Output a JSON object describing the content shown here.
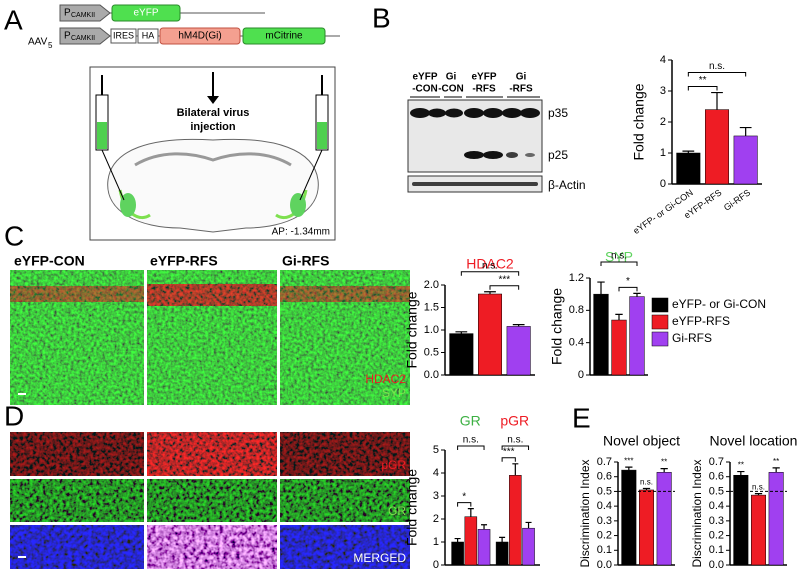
{
  "panel_labels": [
    "A",
    "B",
    "C",
    "D",
    "E"
  ],
  "construct": {
    "vector": "AAV",
    "vector_sub": "5",
    "promoter": "P",
    "promoter_sub": "CAMKII",
    "reporter": "eYFP",
    "ires": "IRES",
    "tag": "HA",
    "receptor": "hM4D(Gi)",
    "fluor": "mCitrine",
    "injection": [
      "Bilateral virus",
      "injection"
    ],
    "coordinate": "AP: -1.34mm"
  },
  "blot": {
    "lanes": [
      [
        "eYFP",
        "-CON"
      ],
      [
        "Gi",
        "-CON"
      ],
      [
        "eYFP",
        "-RFS"
      ],
      [
        "Gi",
        "-RFS"
      ]
    ],
    "bands": [
      "p35",
      "p25",
      "β-Actin"
    ]
  },
  "micrographs": {
    "columns": [
      "eYFP-CON",
      "eYFP-RFS",
      "Gi-RFS"
    ],
    "stains": [
      "HDAC2",
      "SYP"
    ],
    "rows": [
      "pGR",
      "GR",
      "MERGED"
    ]
  },
  "chart_data": [
    {
      "type": "bar",
      "ylabel": "Fold change",
      "categories": [
        "eYFP- or Gi-CON",
        "eYFP-RFS",
        "Gi-RFS"
      ],
      "values": [
        1.0,
        2.4,
        1.55
      ],
      "errors": [
        0.06,
        0.55,
        0.27
      ],
      "colors": [
        "#000000",
        "#ee1c24",
        "#a040f0"
      ],
      "ylim": [
        0,
        4
      ],
      "yticks": [
        0,
        1,
        2,
        3,
        4
      ],
      "comparisons": [
        {
          "label": "**",
          "from": 0,
          "to": 1
        },
        {
          "label": "n.s.",
          "from": 0,
          "to": 2
        }
      ]
    },
    {
      "type": "bar",
      "title": "HDAC2",
      "title_color": "#ee1c24",
      "ylabel": "Fold change",
      "values": [
        0.92,
        1.8,
        1.08
      ],
      "errors": [
        0.04,
        0.05,
        0.04
      ],
      "colors": [
        "#000000",
        "#ee1c24",
        "#a040f0"
      ],
      "ylim": [
        0,
        2
      ],
      "yticks": [
        {
          "value": 0,
          "label": "0.0"
        },
        0.5,
        {
          "value": 1,
          "label": "1.0"
        },
        1.5,
        {
          "value": 2,
          "label": "2.0"
        }
      ],
      "comparisons": [
        {
          "label": "***",
          "from": 1,
          "to": 2
        },
        {
          "label": "n.s.",
          "from": 0,
          "to": 2
        }
      ]
    },
    {
      "type": "bar",
      "title": "SYP",
      "title_color": "#5fd35f",
      "ylabel": "Fold change",
      "values": [
        1.0,
        0.68,
        0.97
      ],
      "errors": [
        0.15,
        0.07,
        0.04
      ],
      "colors": [
        "#000000",
        "#ee1c24",
        "#a040f0"
      ],
      "ylim": [
        0,
        1.2
      ],
      "yticks": [
        0,
        0.4,
        0.8,
        1.2
      ],
      "comparisons": [
        {
          "label": "*",
          "from": 1,
          "to": 2
        },
        {
          "label": "n.s.",
          "from": 0,
          "to": 2
        }
      ]
    },
    {
      "type": "grouped_bar",
      "ylabel": "Fold change",
      "categories": [
        "GR",
        "pGR"
      ],
      "category_colors": [
        "#3cb043",
        "#ee1c24"
      ],
      "series": [
        {
          "name": "eYFP- or Gi-CON",
          "color": "#000000",
          "values": [
            1.0,
            1.0
          ],
          "errors": [
            0.15,
            0.2
          ]
        },
        {
          "name": "eYFP-RFS",
          "color": "#ee1c24",
          "values": [
            2.1,
            3.9
          ],
          "errors": [
            0.35,
            0.5
          ]
        },
        {
          "name": "Gi-RFS",
          "color": "#a040f0",
          "values": [
            1.55,
            1.6
          ],
          "errors": [
            0.2,
            0.25
          ]
        }
      ],
      "ylim": [
        0,
        5
      ],
      "yticks": [
        0,
        1,
        2,
        3,
        4,
        5
      ],
      "comparisons": [
        {
          "label": "*",
          "group": 0,
          "from": 0,
          "to": 1
        },
        {
          "label": "n.s.",
          "group": 0,
          "from": 0,
          "to": 2
        },
        {
          "label": "***",
          "group": 1,
          "from": 0,
          "to": 1
        },
        {
          "label": "n.s.",
          "group": 1,
          "from": 0,
          "to": 2
        }
      ]
    },
    {
      "type": "bar",
      "title": "Novel object",
      "ylabel": "Discrimination Index",
      "values": [
        0.645,
        0.51,
        0.63
      ],
      "errors": [
        0.02,
        0.01,
        0.025
      ],
      "colors": [
        "#000000",
        "#ee1c24",
        "#a040f0"
      ],
      "ylim": [
        0,
        0.7
      ],
      "yticks": [
        {
          "value": 0,
          "label": "0.0"
        },
        0.1,
        0.2,
        0.3,
        0.4,
        0.5,
        0.6,
        0.7
      ],
      "reference_line": 0.5,
      "bar_labels": [
        "***",
        "n.s.",
        "**"
      ]
    },
    {
      "type": "bar",
      "title": "Novel location",
      "ylabel": "Discrimination Index",
      "values": [
        0.61,
        0.475,
        0.63
      ],
      "errors": [
        0.025,
        0.01,
        0.03
      ],
      "colors": [
        "#000000",
        "#ee1c24",
        "#a040f0"
      ],
      "ylim": [
        0,
        0.7
      ],
      "yticks": [
        {
          "value": 0,
          "label": "0.0"
        },
        0.1,
        0.2,
        0.3,
        0.4,
        0.5,
        0.6,
        0.7
      ],
      "reference_line": 0.5,
      "bar_labels": [
        "**",
        "n.s.",
        "**"
      ]
    }
  ]
}
